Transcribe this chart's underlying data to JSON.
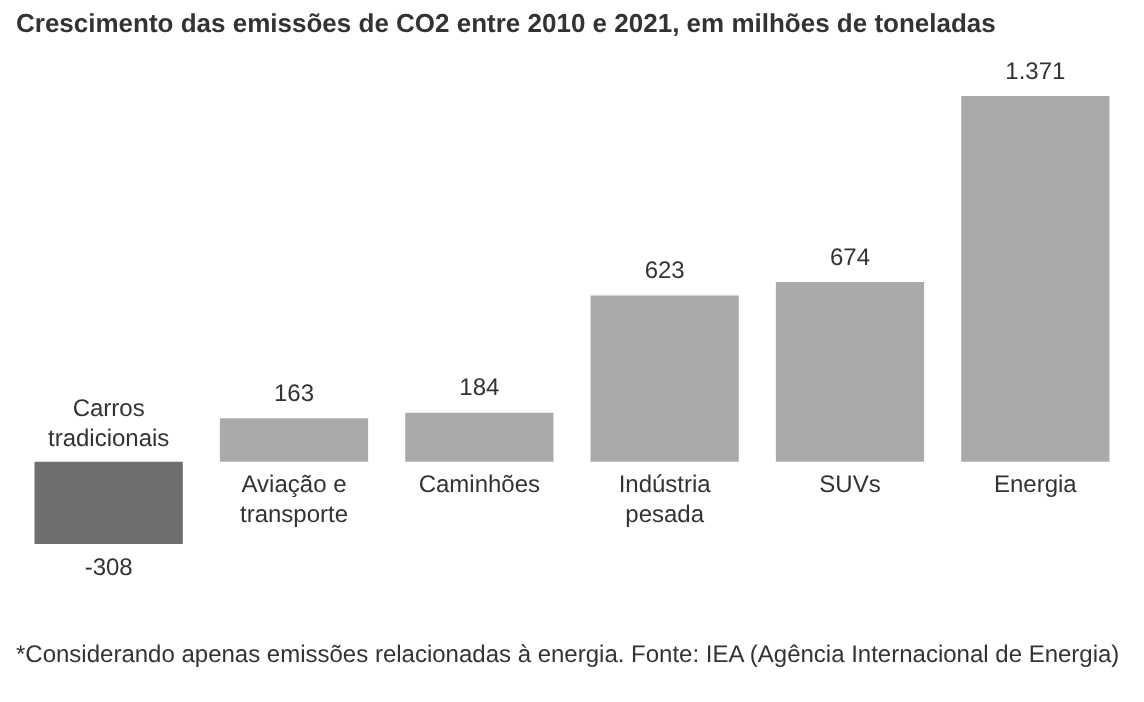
{
  "chart_data": {
    "type": "bar",
    "title": "Crescimento das emissões de CO2 entre 2010 e 2021, em milhões de toneladas",
    "categories": [
      "Carros tradicionais",
      "Aviação e transporte",
      "Caminhões",
      "Indústria pesada",
      "SUVs",
      "Energia"
    ],
    "values": [
      -308,
      163,
      184,
      623,
      674,
      1371
    ],
    "colors": [
      "#6e6e6e",
      "#aaaaaa",
      "#aaaaaa",
      "#aaaaaa",
      "#aaaaaa",
      "#aaaaaa"
    ],
    "value_labels": [
      "-308",
      "163",
      "184",
      "623",
      "674",
      "1.371"
    ],
    "annotations": [
      "*Considerando apenas emissões relacionadas à energia. Fonte: IEA (Agência Internacional de Energia)"
    ],
    "legend": false
  }
}
